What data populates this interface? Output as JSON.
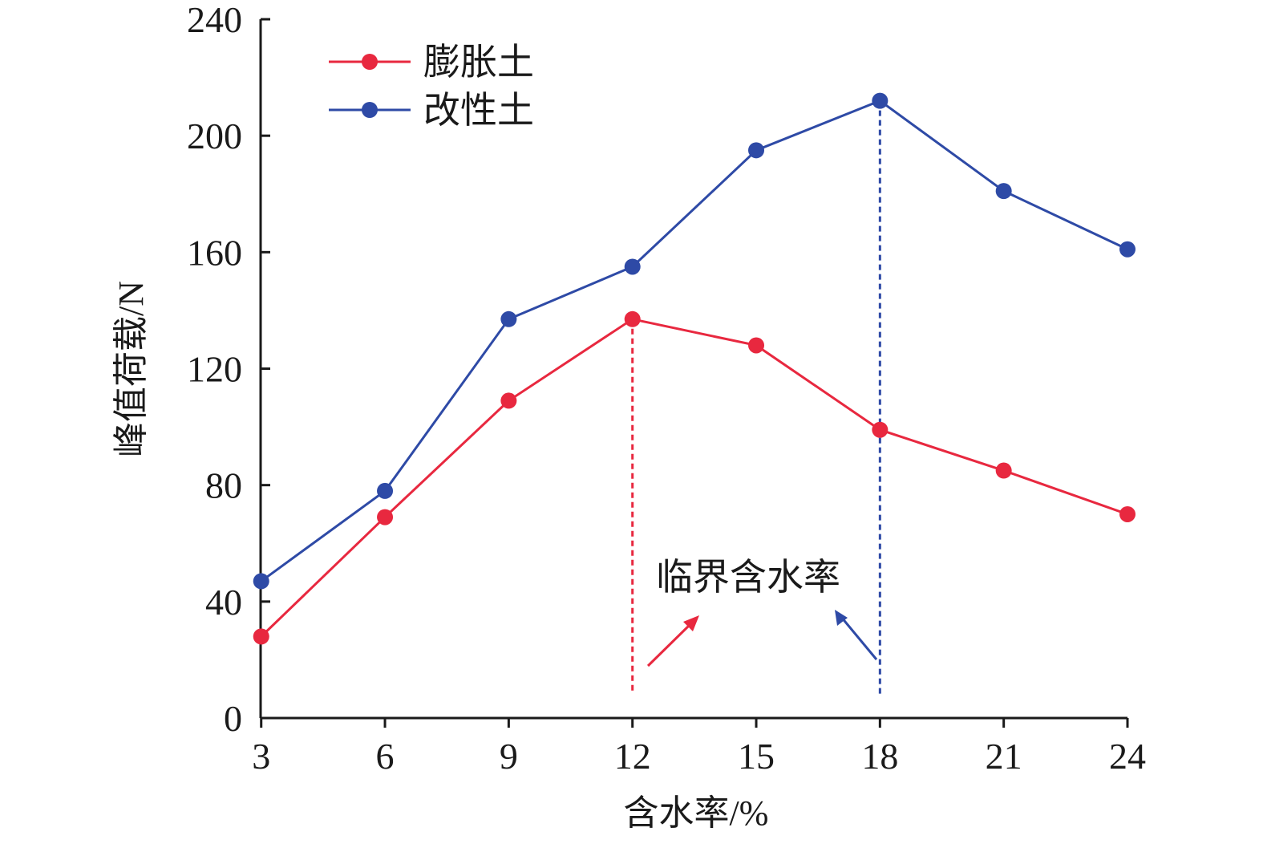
{
  "chart_data": {
    "type": "line",
    "title": "",
    "xlabel": "含水率/%",
    "ylabel": "峰值荷载/N",
    "x": [
      3,
      6,
      9,
      12,
      15,
      18,
      21,
      24
    ],
    "xlim": [
      2.5,
      24
    ],
    "ylim": [
      0,
      240
    ],
    "x_ticks": [
      "3",
      "6",
      "9",
      "12",
      "15",
      "18",
      "21",
      "24"
    ],
    "y_ticks": [
      "0",
      "40",
      "80",
      "120",
      "160",
      "200",
      "240"
    ],
    "grid": false,
    "legend_position": "top-left",
    "series": [
      {
        "name": "膨胀土",
        "color": "#e8283f",
        "values": [
          28,
          69,
          109,
          137,
          128,
          99,
          85,
          70
        ]
      },
      {
        "name": "改性土",
        "color": "#2e4aa6",
        "values": [
          47,
          78,
          137,
          155,
          195,
          212,
          181,
          161
        ]
      }
    ],
    "critical_markers": [
      {
        "series": "膨胀土",
        "x": 12,
        "color": "#e8283f"
      },
      {
        "series": "改性土",
        "x": 18,
        "color": "#2e4aa6"
      }
    ],
    "annotation": "临界含水率"
  }
}
